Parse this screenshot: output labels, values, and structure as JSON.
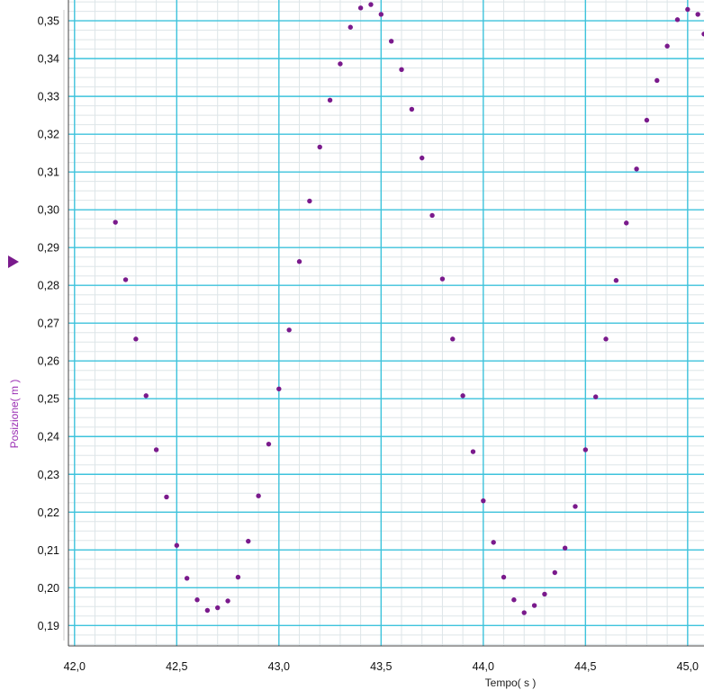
{
  "chart_data": {
    "type": "scatter",
    "xlabel": "Tempo( s )",
    "ylabel": "Posizione( m )",
    "xlim": [
      41.97,
      45.08
    ],
    "ylim": [
      0.1846,
      0.3555
    ],
    "x_ticks": [
      "42,0",
      "42,5",
      "43,0",
      "43,5",
      "44,0",
      "44,5",
      "45,0"
    ],
    "y_ticks": [
      "0,19",
      "0,20",
      "0,21",
      "0,22",
      "0,23",
      "0,24",
      "0,25",
      "0,26",
      "0,27",
      "0,28",
      "0,29",
      "0,30",
      "0,31",
      "0,32",
      "0,33",
      "0,34",
      "0,35"
    ],
    "grid": true,
    "series": [
      {
        "points": [
          [
            42.2,
            0.2967
          ],
          [
            42.25,
            0.2815
          ],
          [
            42.3,
            0.2658
          ],
          [
            42.35,
            0.2508
          ],
          [
            42.4,
            0.2365
          ],
          [
            42.45,
            0.224
          ],
          [
            42.5,
            0.2112
          ],
          [
            42.55,
            0.2025
          ],
          [
            42.6,
            0.1968
          ],
          [
            42.65,
            0.194
          ],
          [
            42.7,
            0.1947
          ],
          [
            42.75,
            0.1965
          ],
          [
            42.8,
            0.2028
          ],
          [
            42.85,
            0.2123
          ],
          [
            42.9,
            0.2243
          ],
          [
            42.95,
            0.238
          ],
          [
            43.0,
            0.2526
          ],
          [
            43.05,
            0.2682
          ],
          [
            43.1,
            0.2863
          ],
          [
            43.15,
            0.3023
          ],
          [
            43.2,
            0.3166
          ],
          [
            43.25,
            0.329
          ],
          [
            43.3,
            0.3386
          ],
          [
            43.35,
            0.3483
          ],
          [
            43.4,
            0.3534
          ],
          [
            43.45,
            0.3543
          ],
          [
            43.5,
            0.3517
          ],
          [
            43.55,
            0.3446
          ],
          [
            43.6,
            0.3371
          ],
          [
            43.65,
            0.3266
          ],
          [
            43.7,
            0.3137
          ],
          [
            43.75,
            0.2985
          ],
          [
            43.8,
            0.2817
          ],
          [
            43.85,
            0.2658
          ],
          [
            43.9,
            0.2508
          ],
          [
            43.95,
            0.236
          ],
          [
            44.0,
            0.223
          ],
          [
            44.05,
            0.212
          ],
          [
            44.1,
            0.2028
          ],
          [
            44.15,
            0.1968
          ],
          [
            44.2,
            0.1934
          ],
          [
            44.25,
            0.1953
          ],
          [
            44.3,
            0.1983
          ],
          [
            44.35,
            0.204
          ],
          [
            44.4,
            0.2105
          ],
          [
            44.45,
            0.2215
          ],
          [
            44.5,
            0.2365
          ],
          [
            44.55,
            0.2505
          ],
          [
            44.6,
            0.2658
          ],
          [
            44.65,
            0.2813
          ],
          [
            44.7,
            0.2965
          ],
          [
            44.75,
            0.3108
          ],
          [
            44.8,
            0.3237
          ],
          [
            44.85,
            0.3342
          ],
          [
            44.9,
            0.3433
          ],
          [
            44.95,
            0.3503
          ],
          [
            45.0,
            0.353
          ],
          [
            45.05,
            0.3517
          ],
          [
            45.08,
            0.3465
          ]
        ]
      }
    ],
    "colors": {
      "point": "#7a1a8c",
      "major_grid": "#3ec3dc",
      "minor_grid": "#dde5e8",
      "axis_label": "#9b2fb4",
      "axis_title_x": "#222222",
      "axis_line": "#444444"
    }
  }
}
